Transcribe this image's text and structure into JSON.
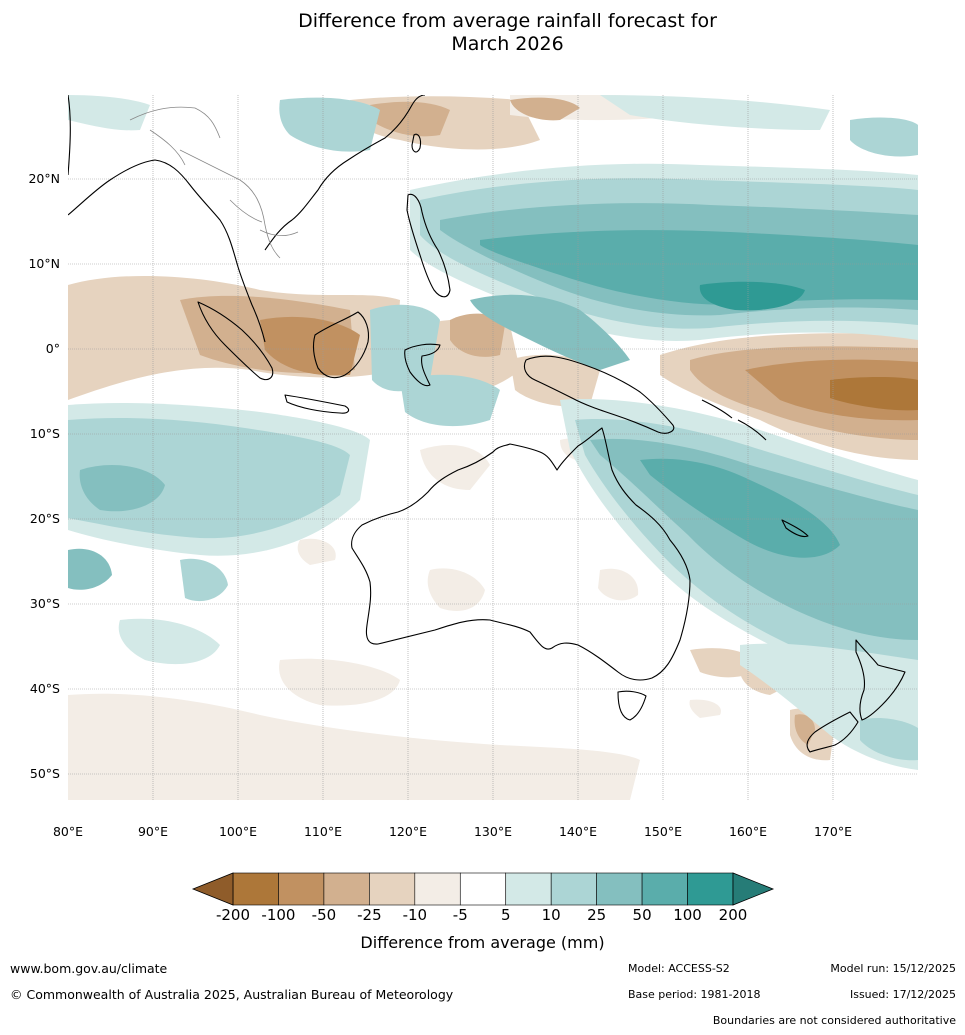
{
  "title": {
    "line1": "Difference from average rainfall forecast for",
    "line2": "March 2026"
  },
  "map": {
    "lat_labels": [
      "20°N",
      "10°N",
      "0°",
      "10°S",
      "20°S",
      "30°S",
      "40°S",
      "50°S"
    ],
    "lon_labels": [
      "80°E",
      "90°E",
      "100°E",
      "110°E",
      "120°E",
      "130°E",
      "140°E",
      "150°E",
      "160°E",
      "170°E"
    ],
    "lon_range": [
      80,
      180
    ],
    "lat_range": [
      -55,
      30
    ]
  },
  "colorbar": {
    "ticks": [
      "-200",
      "-100",
      "-50",
      "-25",
      "-10",
      "-5",
      "5",
      "10",
      "25",
      "50",
      "100",
      "200"
    ],
    "colors": [
      "#ad7739",
      "#c19161",
      "#d2b08f",
      "#e6d3bf",
      "#f3ede6",
      "#ffffff",
      "#d3e9e7",
      "#acd5d5",
      "#84bfbf",
      "#5aadab",
      "#2f9a94"
    ],
    "under_color": "#8f5c2a",
    "over_color": "#267c77",
    "label": "Difference from average (mm)"
  },
  "footer": {
    "website": "www.bom.gov.au/climate",
    "copyright": "© Commonwealth of Australia 2025, Australian Bureau of Meteorology",
    "model": "Model: ACCESS-S2",
    "base_period": "Base period: 1981-2018",
    "model_run": "Model run: 15/12/2025",
    "issued": "Issued: 17/12/2025",
    "disclaimer": "Boundaries are not considered authoritative"
  }
}
